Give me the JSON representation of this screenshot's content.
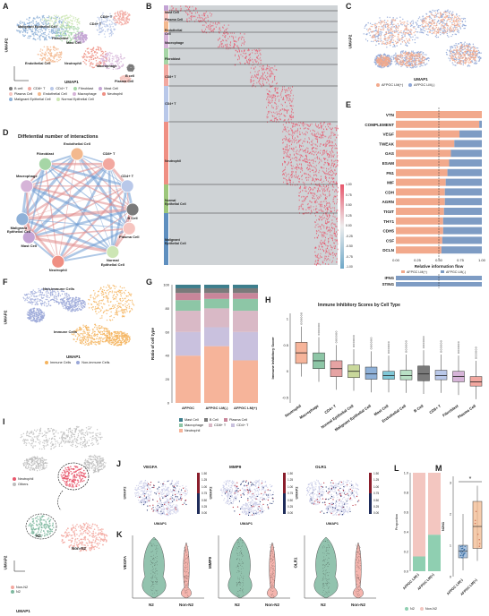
{
  "panels": {
    "A": "A",
    "B": "B",
    "C": "C",
    "D": "D",
    "E": "E",
    "F": "F",
    "G": "G",
    "H": "H",
    "I": "I",
    "J": "J",
    "K": "K",
    "L": "L",
    "M": "M"
  },
  "axes": {
    "umap1": "UMAP1",
    "umap2": "UMAP2"
  },
  "panelA": {
    "clusters": [
      {
        "name": "Malignant Epithelial Cell",
        "color": "#8fb1d8"
      },
      {
        "name": "Fibroblast",
        "color": "#a6d6a6"
      },
      {
        "name": "Mast Cell",
        "color": "#c3a3d4"
      },
      {
        "name": "CD4+ T",
        "color": "#b9c8e9"
      },
      {
        "name": "CD8+ T",
        "color": "#f2a8a0"
      },
      {
        "name": "Endothelial Cell",
        "color": "#f3b98f"
      },
      {
        "name": "Neutrophil",
        "color": "#ef8f83"
      },
      {
        "name": "Macrophage",
        "color": "#d6b4d8"
      },
      {
        "name": "B cell",
        "color": "#7a7a7a"
      },
      {
        "name": "Plasma Cell",
        "color": "#f6c5c0"
      },
      {
        "name": "Normal Epithelial Cell",
        "color": "#cde6b4"
      }
    ],
    "legend": [
      "B cell",
      "CD8+ T",
      "CD4+ T",
      "Fibroblast",
      "Mast Cell",
      "Plasma Cell",
      "Endothelial Cell",
      "Macrophage",
      "Neutrophil",
      "Malignant Epithelial Cell",
      "Normal Epithelial Cell"
    ],
    "legend_colors": [
      "#7a7a7a",
      "#f2a8a0",
      "#b9c8e9",
      "#a6d6a6",
      "#c3a3d4",
      "#f6c5c0",
      "#f3b98f",
      "#d6b4d8",
      "#ef8f83",
      "#8fb1d8",
      "#cde6b4"
    ]
  },
  "panelB": {
    "rows": [
      "Mast Cell",
      "Plasma Cell",
      "Endothelial Cell",
      "Macrophage",
      "Fibroblast",
      "CD8+ T",
      "CD4+ T",
      "Neutrophil",
      "Normal Epithelial Cell",
      "Malignant Epithelial Cell"
    ],
    "row_colors": [
      "#c3a3d4",
      "#f6c5c0",
      "#f3b98f",
      "#d6b4d8",
      "#a6d6a6",
      "#f2a8a0",
      "#b9c8e9",
      "#ef8f83",
      "#9dc77b",
      "#5f8fbf"
    ],
    "colorbar": [
      "1.00",
      "0.75",
      "0.50",
      "0.25",
      "0.00",
      "-0.25",
      "-0.50",
      "-0.75",
      "-1.00"
    ]
  },
  "panelC": {
    "legend": [
      "AFPGC LM(+)",
      "AFPGC LM(-)"
    ],
    "colors": [
      "#f2a98c",
      "#8fa6d6"
    ]
  },
  "panelD": {
    "title": "Diffetential number of interactions",
    "nodes": [
      "Endothelial Cell",
      "CD8+ T",
      "Fibroblast",
      "CD4+ T",
      "Macrophage",
      "B Cell",
      "Malignant Epithelial Cell",
      "Plasma Cell",
      "Mast Cell",
      "Normal Epithelial Cell",
      "Neutrophil"
    ]
  },
  "panelE": {
    "ylabels": [
      "VTN",
      "COMPLEMENT",
      "VEGF",
      "TWEAK",
      "GAS",
      "ESAM",
      "FN1",
      "MIF",
      "CDH",
      "AGRN",
      "TIGIT",
      "THY1",
      "CDH5",
      "CSF",
      "DCLN"
    ],
    "plus_fraction": [
      1.0,
      0.97,
      0.74,
      0.68,
      0.64,
      0.62,
      0.6,
      0.58,
      0.57,
      0.57,
      0.56,
      0.55,
      0.55,
      0.54,
      0.53
    ],
    "ticks": [
      "0.00",
      "0.25",
      "0.50",
      "0.75",
      "1.00"
    ],
    "xlabel": "Relative information flow",
    "legend": [
      "AFPGC LM(+)",
      "AFPGC LM(-)"
    ],
    "colors": [
      "#f2a98c",
      "#7e9cc4"
    ],
    "lower_labels": [
      "IFNG",
      "STING"
    ],
    "lower_plus_fraction": [
      0.0,
      0.0
    ]
  },
  "panelF": {
    "labels": [
      "Non-immune Cells",
      "Immune Cells"
    ],
    "legend": [
      "Immune Cells",
      "Non-immune Cells"
    ],
    "colors": [
      "#f5b45e",
      "#9aa7d8"
    ]
  },
  "panelG": {
    "ylabel": "Ratio of cell type",
    "yticks": [
      "100",
      "80",
      "60",
      "40",
      "20",
      "0"
    ],
    "categories": [
      "AFPGC",
      "AFPGC LM(-)",
      "AFPGC LM(+)"
    ],
    "legend": [
      "Mast Cell",
      "B Cell",
      "Plasma Cell",
      "Macrophage",
      "CD8+ T",
      "CD4+ T",
      "Neutrophil"
    ],
    "colors": [
      "#3d7e8c",
      "#7a7a7a",
      "#c8869a",
      "#8dc6a6",
      "#d9b9c6",
      "#c9c1de",
      "#f6b49a"
    ]
  },
  "chart_data": [
    {
      "type": "bar",
      "title": "",
      "ylabel": "Ratio of cell type",
      "ylim": [
        0,
        100
      ],
      "categories": [
        "AFPGC",
        "AFPGC LM(-)",
        "AFPGC LM(+)"
      ],
      "series": [
        {
          "name": "Neutrophil",
          "values": [
            40,
            48,
            36
          ]
        },
        {
          "name": "CD4+ T",
          "values": [
            20,
            16,
            24
          ]
        },
        {
          "name": "CD8+ T",
          "values": [
            18,
            16,
            18
          ]
        },
        {
          "name": "Macrophage",
          "values": [
            9,
            8,
            10
          ]
        },
        {
          "name": "Plasma Cell",
          "values": [
            6,
            5,
            5
          ]
        },
        {
          "name": "B Cell",
          "values": [
            4,
            4,
            4
          ]
        },
        {
          "name": "Mast Cell",
          "values": [
            3,
            3,
            3
          ]
        }
      ]
    },
    {
      "type": "box",
      "title": "Immune Inhibitory Scores by Cell Type",
      "ylabel": "Immune Inhibitory Score",
      "categories": [
        "Neutrophil",
        "Macrophage",
        "CD4+ T",
        "Normal Epithelial Cell",
        "Malignant Epithelial Cell",
        "Mast Cell",
        "Endothelial Cell",
        "B Cell",
        "CD8+ T",
        "Fibroblast",
        "Plasma Cell"
      ],
      "median": [
        0.35,
        0.2,
        0.05,
        0.0,
        -0.05,
        -0.08,
        -0.08,
        -0.05,
        -0.08,
        -0.1,
        -0.2
      ],
      "q1": [
        0.15,
        0.05,
        -0.1,
        -0.12,
        -0.15,
        -0.15,
        -0.16,
        -0.18,
        -0.16,
        -0.2,
        -0.28
      ],
      "q3": [
        0.55,
        0.35,
        0.2,
        0.12,
        0.08,
        0.0,
        0.02,
        0.1,
        0.02,
        0.0,
        -0.1
      ],
      "colors": [
        "#f6b49a",
        "#8dc6a6",
        "#e6a3a3",
        "#c9d89b",
        "#8fb1d8",
        "#7fc7d6",
        "#b9e0c5",
        "#7a7a7a",
        "#b9c8e9",
        "#d6b4d8",
        "#f2a8a0"
      ]
    },
    {
      "type": "bar",
      "title": "",
      "ylabel": "Proportion",
      "ylim": [
        0,
        1
      ],
      "categories": [
        "AFPGC LM(-)",
        "AFPGC LM(+)"
      ],
      "series": [
        {
          "name": "N2",
          "values": [
            0.15,
            0.37
          ]
        },
        {
          "name": "Non-N2",
          "values": [
            0.85,
            0.63
          ]
        }
      ]
    }
  ],
  "panelH": {
    "title": "Immune Inhibitory Scores by Cell Type",
    "ylabel": "Immune Inhibitory Score",
    "yticks": [
      "1",
      "0.5",
      "0",
      "-0.5"
    ]
  },
  "panelI": {
    "legend1": [
      "Neutrophil",
      "Others"
    ],
    "legend2": [
      "Non-N2",
      "N2"
    ],
    "labels": [
      "N2",
      "Non-N2"
    ]
  },
  "panelJ": {
    "genes": [
      "VEGFA",
      "MMP9",
      "OLR1"
    ],
    "cb": [
      "1.50",
      "1.25",
      "1.00",
      "0.75",
      "0.50",
      "0.25",
      "0.00"
    ]
  },
  "panelK": {
    "genes": [
      "VEGFA",
      "MMP9",
      "OLR1"
    ],
    "groups": [
      "N2",
      "Non-N2"
    ],
    "colors": [
      "#7fb9a0",
      "#f3a8a0"
    ]
  },
  "panelL": {
    "ylabel": "Proportion",
    "yticks": [
      "1.0",
      "0.8",
      "0.6",
      "0.4",
      "0.2",
      "0.0"
    ],
    "categories": [
      "AFPGC LM(-)",
      "AFPGC LM(+)"
    ],
    "legend": [
      "N2",
      "Non-N2"
    ],
    "colors": [
      "#8fcfb1",
      "#f3c6c0"
    ]
  },
  "panelM": {
    "ylabel": "N2N1",
    "star": "*",
    "categories": [
      "AFPGC LM(-)",
      "AFPGC LM(+)"
    ],
    "yticks": [
      "3",
      "2",
      "1",
      "0"
    ],
    "colors": [
      "#8fb1d8",
      "#f3b98f"
    ]
  }
}
